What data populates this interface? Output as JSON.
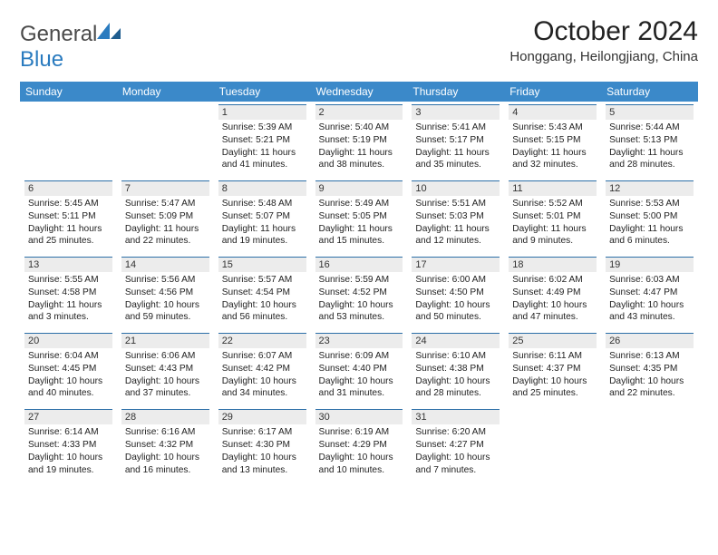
{
  "logo": {
    "text1": "General",
    "text2": "Blue"
  },
  "title": "October 2024",
  "location": "Honggang, Heilongjiang, China",
  "colors": {
    "header_bg": "#3b89c9",
    "header_text": "#ffffff",
    "daynum_bg": "#ececec",
    "daynum_border": "#2c6fa8",
    "body_text": "#222222",
    "logo_gray": "#4a4a4a",
    "logo_blue": "#2a7bbf"
  },
  "day_headers": [
    "Sunday",
    "Monday",
    "Tuesday",
    "Wednesday",
    "Thursday",
    "Friday",
    "Saturday"
  ],
  "first_weekday": 2,
  "days": [
    {
      "n": 1,
      "sunrise": "5:39 AM",
      "sunset": "5:21 PM",
      "daylight": "11 hours and 41 minutes."
    },
    {
      "n": 2,
      "sunrise": "5:40 AM",
      "sunset": "5:19 PM",
      "daylight": "11 hours and 38 minutes."
    },
    {
      "n": 3,
      "sunrise": "5:41 AM",
      "sunset": "5:17 PM",
      "daylight": "11 hours and 35 minutes."
    },
    {
      "n": 4,
      "sunrise": "5:43 AM",
      "sunset": "5:15 PM",
      "daylight": "11 hours and 32 minutes."
    },
    {
      "n": 5,
      "sunrise": "5:44 AM",
      "sunset": "5:13 PM",
      "daylight": "11 hours and 28 minutes."
    },
    {
      "n": 6,
      "sunrise": "5:45 AM",
      "sunset": "5:11 PM",
      "daylight": "11 hours and 25 minutes."
    },
    {
      "n": 7,
      "sunrise": "5:47 AM",
      "sunset": "5:09 PM",
      "daylight": "11 hours and 22 minutes."
    },
    {
      "n": 8,
      "sunrise": "5:48 AM",
      "sunset": "5:07 PM",
      "daylight": "11 hours and 19 minutes."
    },
    {
      "n": 9,
      "sunrise": "5:49 AM",
      "sunset": "5:05 PM",
      "daylight": "11 hours and 15 minutes."
    },
    {
      "n": 10,
      "sunrise": "5:51 AM",
      "sunset": "5:03 PM",
      "daylight": "11 hours and 12 minutes."
    },
    {
      "n": 11,
      "sunrise": "5:52 AM",
      "sunset": "5:01 PM",
      "daylight": "11 hours and 9 minutes."
    },
    {
      "n": 12,
      "sunrise": "5:53 AM",
      "sunset": "5:00 PM",
      "daylight": "11 hours and 6 minutes."
    },
    {
      "n": 13,
      "sunrise": "5:55 AM",
      "sunset": "4:58 PM",
      "daylight": "11 hours and 3 minutes."
    },
    {
      "n": 14,
      "sunrise": "5:56 AM",
      "sunset": "4:56 PM",
      "daylight": "10 hours and 59 minutes."
    },
    {
      "n": 15,
      "sunrise": "5:57 AM",
      "sunset": "4:54 PM",
      "daylight": "10 hours and 56 minutes."
    },
    {
      "n": 16,
      "sunrise": "5:59 AM",
      "sunset": "4:52 PM",
      "daylight": "10 hours and 53 minutes."
    },
    {
      "n": 17,
      "sunrise": "6:00 AM",
      "sunset": "4:50 PM",
      "daylight": "10 hours and 50 minutes."
    },
    {
      "n": 18,
      "sunrise": "6:02 AM",
      "sunset": "4:49 PM",
      "daylight": "10 hours and 47 minutes."
    },
    {
      "n": 19,
      "sunrise": "6:03 AM",
      "sunset": "4:47 PM",
      "daylight": "10 hours and 43 minutes."
    },
    {
      "n": 20,
      "sunrise": "6:04 AM",
      "sunset": "4:45 PM",
      "daylight": "10 hours and 40 minutes."
    },
    {
      "n": 21,
      "sunrise": "6:06 AM",
      "sunset": "4:43 PM",
      "daylight": "10 hours and 37 minutes."
    },
    {
      "n": 22,
      "sunrise": "6:07 AM",
      "sunset": "4:42 PM",
      "daylight": "10 hours and 34 minutes."
    },
    {
      "n": 23,
      "sunrise": "6:09 AM",
      "sunset": "4:40 PM",
      "daylight": "10 hours and 31 minutes."
    },
    {
      "n": 24,
      "sunrise": "6:10 AM",
      "sunset": "4:38 PM",
      "daylight": "10 hours and 28 minutes."
    },
    {
      "n": 25,
      "sunrise": "6:11 AM",
      "sunset": "4:37 PM",
      "daylight": "10 hours and 25 minutes."
    },
    {
      "n": 26,
      "sunrise": "6:13 AM",
      "sunset": "4:35 PM",
      "daylight": "10 hours and 22 minutes."
    },
    {
      "n": 27,
      "sunrise": "6:14 AM",
      "sunset": "4:33 PM",
      "daylight": "10 hours and 19 minutes."
    },
    {
      "n": 28,
      "sunrise": "6:16 AM",
      "sunset": "4:32 PM",
      "daylight": "10 hours and 16 minutes."
    },
    {
      "n": 29,
      "sunrise": "6:17 AM",
      "sunset": "4:30 PM",
      "daylight": "10 hours and 13 minutes."
    },
    {
      "n": 30,
      "sunrise": "6:19 AM",
      "sunset": "4:29 PM",
      "daylight": "10 hours and 10 minutes."
    },
    {
      "n": 31,
      "sunrise": "6:20 AM",
      "sunset": "4:27 PM",
      "daylight": "10 hours and 7 minutes."
    }
  ],
  "labels": {
    "sunrise": "Sunrise:",
    "sunset": "Sunset:",
    "daylight": "Daylight:"
  }
}
